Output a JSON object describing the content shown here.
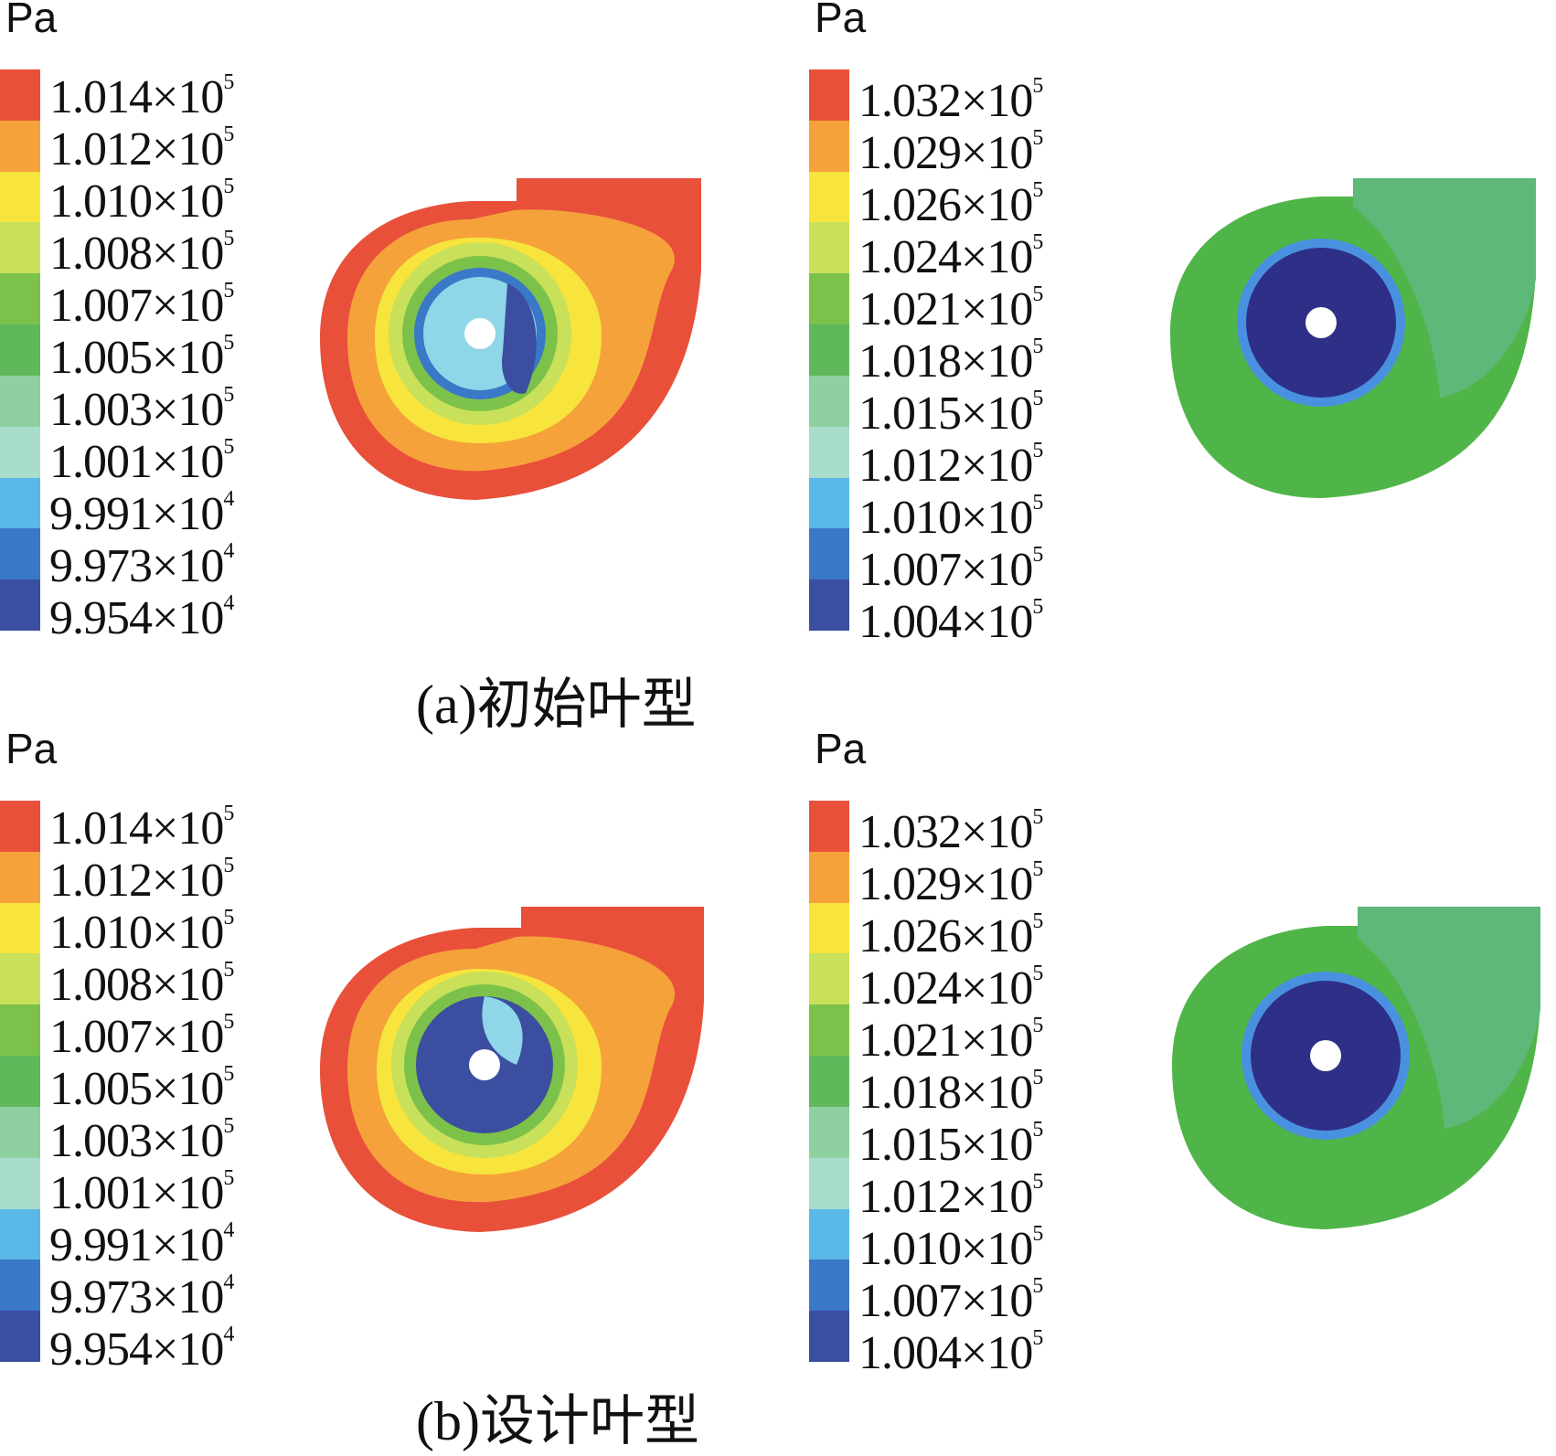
{
  "unit": "Pa",
  "scale_a": {
    "ticks": [
      {
        "mantissa": "1.014",
        "exp": "5"
      },
      {
        "mantissa": "1.012",
        "exp": "5"
      },
      {
        "mantissa": "1.010",
        "exp": "5"
      },
      {
        "mantissa": "1.008",
        "exp": "5"
      },
      {
        "mantissa": "1.007",
        "exp": "5"
      },
      {
        "mantissa": "1.005",
        "exp": "5"
      },
      {
        "mantissa": "1.003",
        "exp": "5"
      },
      {
        "mantissa": "1.001",
        "exp": "5"
      },
      {
        "mantissa": "9.991",
        "exp": "4"
      },
      {
        "mantissa": "9.973",
        "exp": "4"
      },
      {
        "mantissa": "9.954",
        "exp": "4"
      }
    ]
  },
  "scale_b": {
    "ticks": [
      {
        "mantissa": "1.032",
        "exp": "5"
      },
      {
        "mantissa": "1.029",
        "exp": "5"
      },
      {
        "mantissa": "1.026",
        "exp": "5"
      },
      {
        "mantissa": "1.024",
        "exp": "5"
      },
      {
        "mantissa": "1.021",
        "exp": "5"
      },
      {
        "mantissa": "1.018",
        "exp": "5"
      },
      {
        "mantissa": "1.015",
        "exp": "5"
      },
      {
        "mantissa": "1.012",
        "exp": "5"
      },
      {
        "mantissa": "1.010",
        "exp": "5"
      },
      {
        "mantissa": "1.007",
        "exp": "5"
      },
      {
        "mantissa": "1.004",
        "exp": "5"
      }
    ]
  },
  "colorbar_colors": [
    "#e8503a",
    "#f5a23a",
    "#f7e43c",
    "#c8e05a",
    "#7cc24a",
    "#5fb85a",
    "#8fd0a0",
    "#a8dccc",
    "#5ab8e8",
    "#3a78c8",
    "#3c4ea0"
  ],
  "captions": {
    "a": "(a)初始叶型",
    "b": "(b)设计叶型"
  },
  "times_sign": "×",
  "base": "10"
}
